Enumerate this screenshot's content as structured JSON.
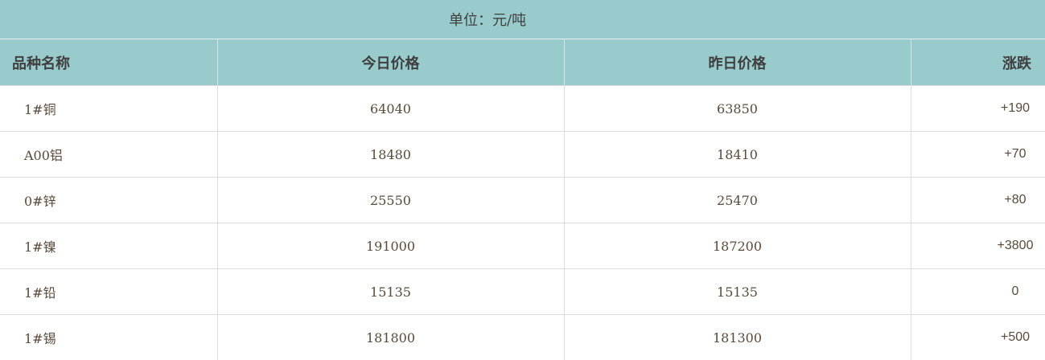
{
  "unit_label": "单位：元/吨",
  "columns": [
    "品种名称",
    "今日价格",
    "昨日价格",
    "涨跌"
  ],
  "rows": [
    [
      "1#铜",
      "64040",
      "63850",
      "+190"
    ],
    [
      "A00铝",
      "18480",
      "18410",
      "+70"
    ],
    [
      "0#锌",
      "25550",
      "25470",
      "+80"
    ],
    [
      "1#镍",
      "191000",
      "187200",
      "+3800"
    ],
    [
      "1#铅",
      "15135",
      "15135",
      "0"
    ],
    [
      "1#锡",
      "181800",
      "181300",
      "+500"
    ]
  ],
  "colors": {
    "header_bg": "#9acbcc",
    "grid": "#dcdcdc"
  }
}
